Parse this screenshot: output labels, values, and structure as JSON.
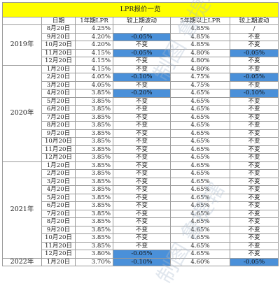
{
  "title": "LPR报价一览",
  "headers": [
    "日期",
    "1年期LPR",
    "较上期波动",
    "5年期以上LPR",
    "较上期波动"
  ],
  "groups": [
    {
      "year": "2019年",
      "rows": [
        {
          "date": "8月20日",
          "lpr1": "4.25%",
          "chg1": "/",
          "lpr5": "4.85%",
          "chg5": "/",
          "hl1": false,
          "hl5": false
        },
        {
          "date": "9月20日",
          "lpr1": "4.20%",
          "chg1": "-0.05%",
          "lpr5": "4.85%",
          "chg5": "不变",
          "hl1": true,
          "hl5": false
        },
        {
          "date": "10月20日",
          "lpr1": "4.20%",
          "chg1": "不变",
          "lpr5": "4.85%",
          "chg5": "不变",
          "hl1": false,
          "hl5": false
        },
        {
          "date": "11月20日",
          "lpr1": "4.15%",
          "chg1": "-0.05%",
          "lpr5": "4.80%",
          "chg5": "-0.05%",
          "hl1": true,
          "hl5": true
        },
        {
          "date": "12月20日",
          "lpr1": "4.15%",
          "chg1": "不变",
          "lpr5": "4.80%",
          "chg5": "不变",
          "hl1": false,
          "hl5": false
        }
      ]
    },
    {
      "year": "2020年",
      "rows": [
        {
          "date": "1月20日",
          "lpr1": "4.15%",
          "chg1": "不变",
          "lpr5": "4.80%",
          "chg5": "不变",
          "hl1": false,
          "hl5": false
        },
        {
          "date": "2月20日",
          "lpr1": "4.05%",
          "chg1": "-0.10%",
          "lpr5": "4.75%",
          "chg5": "-0.05%",
          "hl1": true,
          "hl5": true
        },
        {
          "date": "3月20日",
          "lpr1": "4.05%",
          "chg1": "不变",
          "lpr5": "4.75%",
          "chg5": "不变",
          "hl1": false,
          "hl5": false
        },
        {
          "date": "4月20日",
          "lpr1": "3.85%",
          "chg1": "-0.20%",
          "lpr5": "4.65%",
          "chg5": "-0.10%",
          "hl1": true,
          "hl5": true
        },
        {
          "date": "5月20日",
          "lpr1": "3.85%",
          "chg1": "不变",
          "lpr5": "4.65%",
          "chg5": "不变",
          "hl1": false,
          "hl5": false
        },
        {
          "date": "6月20日",
          "lpr1": "3.85%",
          "chg1": "不变",
          "lpr5": "4.65%",
          "chg5": "不变",
          "hl1": false,
          "hl5": false
        },
        {
          "date": "7月20日",
          "lpr1": "3.85%",
          "chg1": "不变",
          "lpr5": "4.65%",
          "chg5": "不变",
          "hl1": false,
          "hl5": false
        },
        {
          "date": "8月20日",
          "lpr1": "3.85%",
          "chg1": "不变",
          "lpr5": "4.65%",
          "chg5": "不变",
          "hl1": false,
          "hl5": false
        },
        {
          "date": "9月20日",
          "lpr1": "3.85%",
          "chg1": "不变",
          "lpr5": "4.65%",
          "chg5": "不变",
          "hl1": false,
          "hl5": false
        },
        {
          "date": "10月20日",
          "lpr1": "3.85%",
          "chg1": "不变",
          "lpr5": "4.65%",
          "chg5": "不变",
          "hl1": false,
          "hl5": false
        },
        {
          "date": "11月20日",
          "lpr1": "3.85%",
          "chg1": "不变",
          "lpr5": "4.65%",
          "chg5": "不变",
          "hl1": false,
          "hl5": false
        },
        {
          "date": "12月20日",
          "lpr1": "3.85%",
          "chg1": "不变",
          "lpr5": "4.65%",
          "chg5": "不变",
          "hl1": false,
          "hl5": false
        }
      ]
    },
    {
      "year": "2021年",
      "rows": [
        {
          "date": "1月20日",
          "lpr1": "3.85%",
          "chg1": "不变",
          "lpr5": "4.65%",
          "chg5": "不变",
          "hl1": false,
          "hl5": false
        },
        {
          "date": "2月20日",
          "lpr1": "3.85%",
          "chg1": "不变",
          "lpr5": "4.65%",
          "chg5": "不变",
          "hl1": false,
          "hl5": false
        },
        {
          "date": "3月20日",
          "lpr1": "3.85%",
          "chg1": "不变",
          "lpr5": "4.65%",
          "chg5": "不变",
          "hl1": false,
          "hl5": false
        },
        {
          "date": "4月20日",
          "lpr1": "3.85%",
          "chg1": "不变",
          "lpr5": "4.65%",
          "chg5": "不变",
          "hl1": false,
          "hl5": false
        },
        {
          "date": "5月20日",
          "lpr1": "3.85%",
          "chg1": "不变",
          "lpr5": "4.65%",
          "chg5": "不变",
          "hl1": false,
          "hl5": false
        },
        {
          "date": "6月20日",
          "lpr1": "3.85%",
          "chg1": "不变",
          "lpr5": "4.65%",
          "chg5": "不变",
          "hl1": false,
          "hl5": false
        },
        {
          "date": "7月20日",
          "lpr1": "3.85%",
          "chg1": "不变",
          "lpr5": "4.65%",
          "chg5": "不变",
          "hl1": false,
          "hl5": false
        },
        {
          "date": "8月20日",
          "lpr1": "3.85%",
          "chg1": "不变",
          "lpr5": "4.65%",
          "chg5": "不变",
          "hl1": false,
          "hl5": false
        },
        {
          "date": "9月20日",
          "lpr1": "3.85%",
          "chg1": "不变",
          "lpr5": "4.65%",
          "chg5": "不变",
          "hl1": false,
          "hl5": false
        },
        {
          "date": "10月20日",
          "lpr1": "3.85%",
          "chg1": "不变",
          "lpr5": "4.65%",
          "chg5": "不变",
          "hl1": false,
          "hl5": false
        },
        {
          "date": "11月20日",
          "lpr1": "3.85%",
          "chg1": "不变",
          "lpr5": "4.65%",
          "chg5": "不变",
          "hl1": false,
          "hl5": false
        },
        {
          "date": "12月20日",
          "lpr1": "3.80%",
          "chg1": "-0.05%",
          "lpr5": "4.65%",
          "chg5": "不变",
          "hl1": true,
          "hl5": false
        }
      ]
    },
    {
      "year": "2022年",
      "rows": [
        {
          "date": "1月20日",
          "lpr1": "3.70%",
          "chg1": "-0.10%",
          "lpr5": "4.60%",
          "chg5": "-0.05%",
          "hl1": true,
          "hl5": true
        }
      ]
    }
  ],
  "watermark": "制图 鲁提辖",
  "colors": {
    "title_bg": "#ffff00",
    "highlight": "#4a90d9"
  }
}
